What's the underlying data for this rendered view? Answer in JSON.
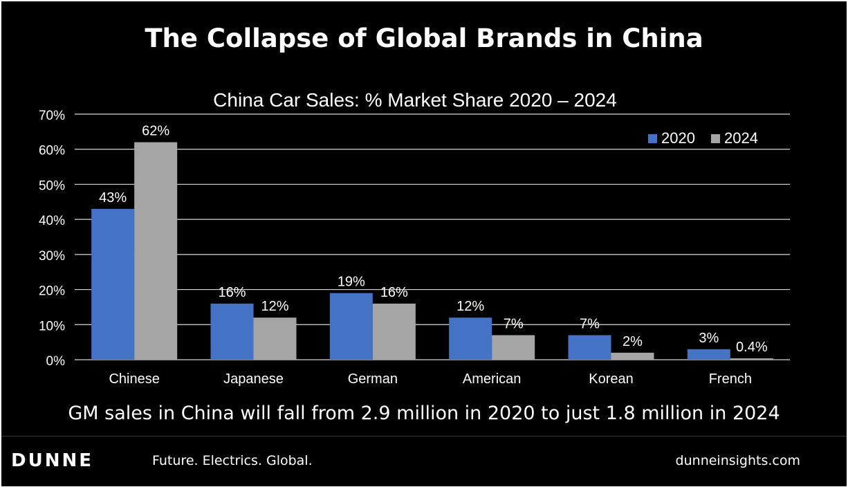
{
  "headline": "The Collapse of Global Brands in China",
  "caption": "GM sales in China will fall from 2.9 million in 2020 to just 1.8 million in 2024",
  "footer": {
    "logo": "DUNNE",
    "tagline": "Future. Electrics. Global.",
    "website": "dunneinsights.com"
  },
  "chart_data": {
    "type": "bar",
    "title": "China Car Sales: % Market Share 2020 – 2024",
    "categories": [
      "Chinese",
      "Japanese",
      "German",
      "American",
      "Korean",
      "French"
    ],
    "series": [
      {
        "name": "2020",
        "color": "#4472c4",
        "values": [
          43,
          16,
          19,
          12,
          7,
          3
        ],
        "labels": [
          "43%",
          "16%",
          "19%",
          "12%",
          "7%",
          "3%"
        ]
      },
      {
        "name": "2024",
        "color": "#a5a5a5",
        "values": [
          62,
          12,
          16,
          7,
          2,
          0.4
        ],
        "labels": [
          "62%",
          "12%",
          "16%",
          "7%",
          "2%",
          "0.4%"
        ]
      }
    ],
    "ylim": [
      0,
      70
    ],
    "yticks": [
      0,
      10,
      20,
      30,
      40,
      50,
      60,
      70
    ],
    "ytick_labels": [
      "0%",
      "10%",
      "20%",
      "30%",
      "40%",
      "50%",
      "60%",
      "70%"
    ],
    "grid": true,
    "legend": "top-right",
    "gridline_color": "#d9d9d9"
  }
}
